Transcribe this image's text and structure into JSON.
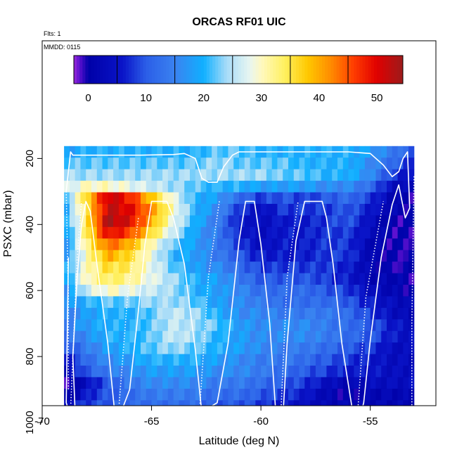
{
  "chart_data": {
    "type": "heatmap",
    "title": "ORCAS RF01 UIC",
    "subtitle_flights": "Flts: 1",
    "subtitle_date": "MMDD: 0115",
    "xlabel": "Latitude (deg N)",
    "ylabel": "PSXC (mbar)",
    "xlim": [
      -70,
      -52
    ],
    "ylim": [
      1010,
      0
    ],
    "x_ticks": [
      -70,
      -65,
      -60,
      -55
    ],
    "x_tick_labels": [
      "-70",
      "-65",
      "-60",
      "-55"
    ],
    "y_ticks": [
      200,
      400,
      600,
      800,
      1000
    ],
    "y_tick_labels": [
      "200",
      "400",
      "600",
      "800",
      "1000"
    ],
    "colorbar": {
      "range": [
        -2.5,
        54.5
      ],
      "ticks": [
        0,
        10,
        20,
        30,
        40,
        50
      ],
      "tick_labels": [
        "0",
        "10",
        "20",
        "30",
        "40",
        "50"
      ],
      "stops": [
        {
          "v": -2.5,
          "c": "#9a2bd8"
        },
        {
          "v": -1.5,
          "c": "#5a10d0"
        },
        {
          "v": 0,
          "c": "#0000a8"
        },
        {
          "v": 6,
          "c": "#0a14c8"
        },
        {
          "v": 10,
          "c": "#2b5ee8"
        },
        {
          "v": 15,
          "c": "#3a82f0"
        },
        {
          "v": 20,
          "c": "#10b0ff"
        },
        {
          "v": 24,
          "c": "#a8dcf8"
        },
        {
          "v": 28,
          "c": "#e8f6f0"
        },
        {
          "v": 30,
          "c": "#fff8c0"
        },
        {
          "v": 34,
          "c": "#fff060"
        },
        {
          "v": 38,
          "c": "#ffc800"
        },
        {
          "v": 42,
          "c": "#ff8c00"
        },
        {
          "v": 46,
          "c": "#ff3c00"
        },
        {
          "v": 50,
          "c": "#e00000"
        },
        {
          "v": 54.5,
          "c": "#9c1c1c"
        }
      ]
    },
    "lat_step": 0.25,
    "pressure_levels": [
      180,
      215,
      250,
      285,
      320,
      355,
      390,
      425,
      460,
      495,
      530,
      565,
      600,
      635,
      670,
      705,
      740,
      775,
      810,
      845,
      880,
      915,
      950,
      985
    ],
    "pressure_half_height": 17.5,
    "pressure_coverage": [
      {
        "lat": [
          -68.9,
          -53.0
        ],
        "p": [
          160,
          960
        ]
      },
      {
        "lat": [
          -66.4,
          -53.2
        ],
        "p": [
          960,
          1010
        ]
      },
      {
        "lat": [
          -53.2,
          -52.9
        ],
        "p": [
          460,
          760
        ]
      }
    ],
    "anchor_latitudes": [
      -69,
      -68,
      -67,
      -66,
      -65,
      -64,
      -63,
      -62,
      -61,
      -60,
      -59,
      -58,
      -57,
      -56,
      -55,
      -54,
      -53
    ],
    "anchor_fields": [
      {
        "p": 180,
        "v": [
          18,
          20,
          20,
          20,
          20,
          20,
          20,
          22,
          22,
          20,
          20,
          20,
          20,
          20,
          18,
          14,
          10
        ]
      },
      {
        "p": 215,
        "v": [
          22,
          22,
          22,
          22,
          22,
          22,
          22,
          24,
          22,
          22,
          22,
          20,
          20,
          20,
          16,
          12,
          6
        ]
      },
      {
        "p": 250,
        "v": [
          24,
          24,
          24,
          24,
          24,
          24,
          24,
          24,
          24,
          24,
          22,
          22,
          20,
          20,
          16,
          8,
          4
        ]
      },
      {
        "p": 285,
        "v": [
          26,
          30,
          30,
          28,
          26,
          24,
          22,
          20,
          20,
          18,
          18,
          18,
          16,
          16,
          12,
          4,
          2
        ]
      },
      {
        "p": 320,
        "v": [
          20,
          36,
          52,
          48,
          38,
          28,
          20,
          18,
          12,
          8,
          10,
          8,
          10,
          12,
          8,
          2,
          0
        ]
      },
      {
        "p": 355,
        "v": [
          18,
          34,
          52,
          50,
          42,
          30,
          20,
          16,
          8,
          4,
          8,
          8,
          8,
          10,
          6,
          2,
          0
        ]
      },
      {
        "p": 390,
        "v": [
          18,
          34,
          54,
          50,
          40,
          28,
          20,
          14,
          6,
          4,
          6,
          6,
          8,
          10,
          4,
          0,
          0
        ]
      },
      {
        "p": 425,
        "v": [
          16,
          34,
          50,
          46,
          36,
          26,
          18,
          14,
          6,
          4,
          6,
          6,
          8,
          8,
          4,
          0,
          0
        ]
      },
      {
        "p": 460,
        "v": [
          16,
          32,
          44,
          40,
          30,
          22,
          18,
          14,
          8,
          4,
          6,
          6,
          8,
          8,
          2,
          0,
          0
        ]
      },
      {
        "p": 495,
        "v": [
          16,
          30,
          40,
          36,
          28,
          20,
          18,
          14,
          10,
          6,
          6,
          6,
          8,
          8,
          2,
          0,
          0
        ]
      },
      {
        "p": 530,
        "v": [
          18,
          30,
          36,
          34,
          28,
          22,
          18,
          16,
          12,
          8,
          8,
          8,
          8,
          6,
          2,
          0,
          0
        ]
      },
      {
        "p": 565,
        "v": [
          18,
          30,
          34,
          32,
          28,
          24,
          20,
          18,
          14,
          10,
          10,
          10,
          8,
          6,
          2,
          2,
          0
        ]
      },
      {
        "p": 600,
        "v": [
          16,
          26,
          30,
          28,
          26,
          24,
          20,
          18,
          16,
          12,
          12,
          12,
          10,
          8,
          4,
          2,
          0
        ]
      },
      {
        "p": 635,
        "v": [
          16,
          20,
          22,
          22,
          24,
          24,
          22,
          18,
          16,
          14,
          12,
          12,
          12,
          10,
          6,
          4,
          2
        ]
      },
      {
        "p": 670,
        "v": [
          14,
          18,
          20,
          20,
          22,
          26,
          24,
          20,
          16,
          16,
          14,
          14,
          14,
          12,
          8,
          4,
          2
        ]
      },
      {
        "p": 705,
        "v": [
          14,
          18,
          20,
          20,
          22,
          26,
          24,
          22,
          18,
          16,
          16,
          16,
          14,
          12,
          10,
          6,
          4
        ]
      },
      {
        "p": 740,
        "v": [
          12,
          16,
          20,
          20,
          22,
          26,
          24,
          20,
          18,
          16,
          16,
          16,
          14,
          12,
          10,
          6,
          4
        ]
      },
      {
        "p": 775,
        "v": [
          8,
          14,
          18,
          20,
          22,
          24,
          22,
          20,
          18,
          16,
          14,
          14,
          12,
          10,
          8,
          4,
          4
        ]
      },
      {
        "p": 810,
        "v": [
          4,
          12,
          16,
          18,
          20,
          20,
          20,
          18,
          16,
          14,
          14,
          12,
          10,
          8,
          6,
          4,
          4
        ]
      },
      {
        "p": 845,
        "v": [
          2,
          10,
          14,
          16,
          18,
          18,
          18,
          16,
          16,
          14,
          12,
          10,
          8,
          6,
          6,
          4,
          4
        ]
      },
      {
        "p": 880,
        "v": [
          -2,
          4,
          10,
          14,
          16,
          16,
          16,
          14,
          14,
          12,
          10,
          8,
          4,
          2,
          4,
          4,
          4
        ]
      },
      {
        "p": 915,
        "v": [
          -2,
          6,
          10,
          12,
          14,
          14,
          14,
          12,
          12,
          10,
          8,
          6,
          2,
          0,
          2,
          2,
          2
        ]
      },
      {
        "p": 950,
        "v": [
          4,
          8,
          10,
          12,
          12,
          12,
          12,
          10,
          10,
          8,
          6,
          4,
          2,
          2,
          2,
          2,
          2
        ]
      },
      {
        "p": 985,
        "v": [
          6,
          8,
          10,
          10,
          10,
          10,
          10,
          8,
          8,
          6,
          4,
          4,
          2,
          2,
          2,
          2,
          2
        ]
      }
    ],
    "flight_track": [
      [
        -68.9,
        300
      ],
      [
        -68.7,
        180
      ],
      [
        -68.6,
        190
      ],
      [
        -68.0,
        190
      ],
      [
        -66.5,
        190
      ],
      [
        -65.5,
        190
      ],
      [
        -64.0,
        188
      ],
      [
        -63.5,
        185
      ],
      [
        -63.0,
        200
      ],
      [
        -62.7,
        260
      ],
      [
        -62.4,
        272
      ],
      [
        -62.0,
        272
      ],
      [
        -61.7,
        225
      ],
      [
        -61.3,
        190
      ],
      [
        -61.0,
        180
      ],
      [
        -59.0,
        180
      ],
      [
        -56.0,
        180
      ],
      [
        -55.0,
        185
      ],
      [
        -54.4,
        220
      ],
      [
        -54.0,
        255
      ],
      [
        -53.7,
        240
      ],
      [
        -53.5,
        200
      ],
      [
        -53.3,
        180
      ],
      [
        -53.2,
        350
      ],
      [
        -53.4,
        380
      ],
      [
        -53.7,
        280
      ],
      [
        -54.0,
        340
      ],
      [
        -54.5,
        500
      ],
      [
        -55.0,
        750
      ],
      [
        -55.3,
        940
      ],
      [
        -55.5,
        990
      ],
      [
        -55.8,
        970
      ],
      [
        -56.3,
        760
      ],
      [
        -56.7,
        520
      ],
      [
        -57.0,
        380
      ],
      [
        -57.2,
        330
      ],
      [
        -58.0,
        330
      ],
      [
        -58.4,
        450
      ],
      [
        -58.8,
        760
      ],
      [
        -59.0,
        990
      ],
      [
        -59.3,
        990
      ],
      [
        -59.6,
        700
      ],
      [
        -60.0,
        460
      ],
      [
        -60.3,
        330
      ],
      [
        -60.7,
        330
      ],
      [
        -61.0,
        450
      ],
      [
        -61.5,
        760
      ],
      [
        -62.0,
        940
      ],
      [
        -62.5,
        960
      ],
      [
        -62.7,
        970
      ],
      [
        -63.0,
        780
      ],
      [
        -63.5,
        520
      ],
      [
        -64.0,
        380
      ],
      [
        -64.3,
        330
      ],
      [
        -65.0,
        330
      ],
      [
        -65.3,
        460
      ],
      [
        -65.6,
        660
      ],
      [
        -66.0,
        900
      ],
      [
        -66.4,
        970
      ],
      [
        -66.7,
        960
      ],
      [
        -67.0,
        760
      ],
      [
        -67.5,
        520
      ],
      [
        -67.8,
        360
      ],
      [
        -68.0,
        330
      ],
      [
        -68.2,
        400
      ],
      [
        -68.4,
        560
      ],
      [
        -68.6,
        800
      ],
      [
        -68.5,
        960
      ],
      [
        -68.7,
        980
      ],
      [
        -68.9,
        940
      ],
      [
        -68.8,
        500
      ]
    ],
    "dotted_profiles": [
      [
        [
          -68.7,
          960
        ],
        [
          -68.4,
          500
        ],
        [
          -68.2,
          330
        ]
      ],
      [
        [
          -66.5,
          960
        ],
        [
          -66.1,
          620
        ],
        [
          -65.6,
          380
        ]
      ],
      [
        [
          -62.8,
          960
        ],
        [
          -62.4,
          560
        ],
        [
          -61.9,
          330
        ]
      ],
      [
        [
          -59.1,
          990
        ],
        [
          -58.8,
          560
        ],
        [
          -58.3,
          330
        ]
      ],
      [
        [
          -55.6,
          990
        ],
        [
          -55.2,
          620
        ],
        [
          -54.4,
          330
        ]
      ],
      [
        [
          -53.1,
          990
        ],
        [
          -53.1,
          700
        ],
        [
          -53.0,
          250
        ]
      ],
      [
        [
          -68.9,
          300
        ],
        [
          -68.8,
          620
        ],
        [
          -68.8,
          900
        ]
      ]
    ],
    "arrow": {
      "lat": -53.0,
      "p_from": 960,
      "p_to": 1008
    },
    "track_color": "#ffffff",
    "arrow_color": "#000000"
  }
}
